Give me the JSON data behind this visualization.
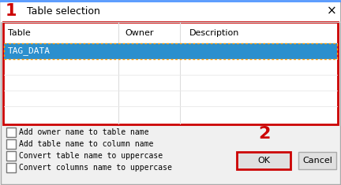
{
  "title": "Table selection",
  "title_number": "1",
  "step2_number": "2",
  "bg_color": "#f0f0f0",
  "white": "#ffffff",
  "red": "#cc0000",
  "blue_selected": "#2b8fce",
  "orange_dotted": "#ff9900",
  "dark_text": "#000000",
  "white_text": "#ffffff",
  "gray_button": "#e0e0e0",
  "light_gray_line": "#d0d0d0",
  "title_bg": "#f8f8f8",
  "columns": [
    "Table",
    "Owner",
    "Description"
  ],
  "selected_row": "TAG_DATA",
  "checkboxes": [
    "Add owner name to table name",
    "Add table name to column name",
    "Convert table name to uppercase",
    "Convert columns name to uppercase"
  ],
  "buttons": [
    "OK",
    "Cancel"
  ],
  "figsize": [
    4.32,
    2.35
  ],
  "dpi": 100
}
